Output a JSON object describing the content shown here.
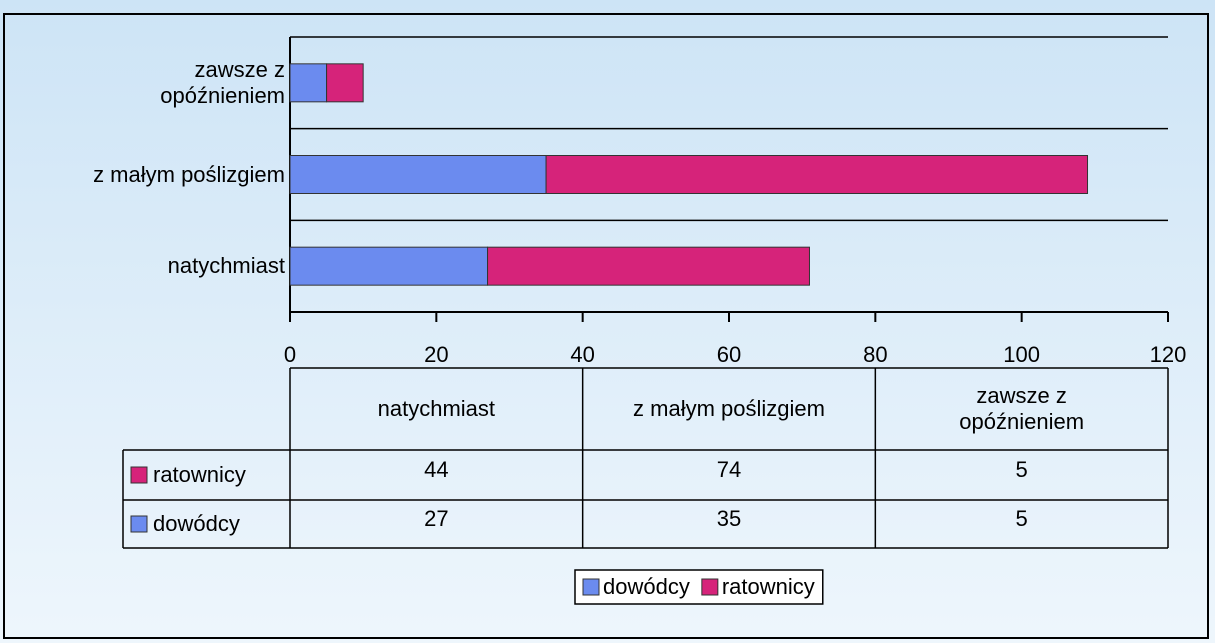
{
  "chart_data": {
    "type": "stacked_barh",
    "categories": [
      "natychmiast",
      "z małym poślizgiem",
      "zawsze z opóźnieniem"
    ],
    "series": [
      {
        "name": "dowódcy",
        "color": "#6b8bef",
        "values": [
          27,
          35,
          5
        ]
      },
      {
        "name": "ratownicy",
        "color": "#d6237a",
        "values": [
          44,
          74,
          5
        ]
      }
    ],
    "xlim": [
      0,
      120
    ],
    "xticks": [
      0,
      20,
      40,
      60,
      80,
      100,
      120
    ],
    "legend": "bottom",
    "data_table": true
  }
}
